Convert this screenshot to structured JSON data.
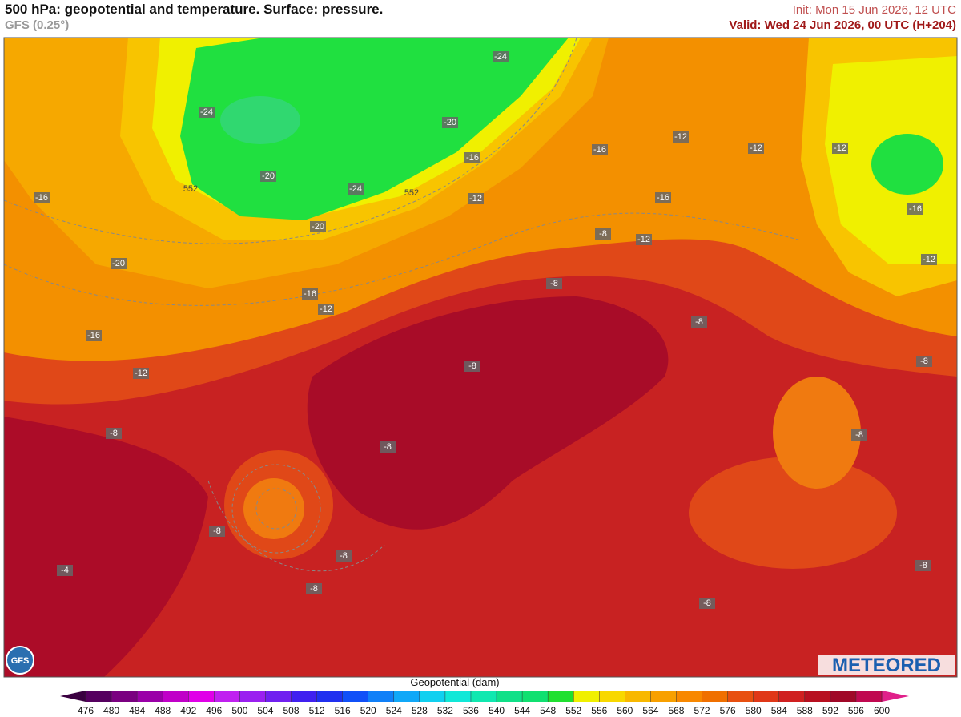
{
  "header": {
    "title": "500 hPa: geopotential and temperature. Surface: pressure.",
    "model": "GFS (0.25°)",
    "init": "Init: Mon 15 Jun 2026, 12 UTC",
    "valid": "Valid: Wed 24 Jun 2026, 00 UTC (H+204)"
  },
  "map": {
    "contour_labels": [
      "-24",
      "-24",
      "-20",
      "-16",
      "-20",
      "-24",
      "552",
      "552",
      "-16",
      "-12",
      "-20",
      "-16",
      "-12",
      "-12",
      "-12",
      "-16",
      "-16",
      "-8",
      "-12",
      "-12",
      "-20",
      "-8",
      "-16",
      "-12",
      "-8",
      "-16",
      "-12",
      "-8",
      "-8",
      "-8",
      "-8",
      "-8",
      "-8",
      "-8",
      "-4",
      "-8",
      "-8",
      "-8"
    ]
  },
  "colorbar": {
    "title": "Geopotential (dam)",
    "ticks": [
      476,
      480,
      484,
      488,
      492,
      496,
      500,
      504,
      508,
      512,
      516,
      520,
      524,
      528,
      532,
      536,
      540,
      544,
      548,
      552,
      556,
      560,
      564,
      568,
      572,
      576,
      580,
      584,
      588,
      592,
      596,
      600
    ],
    "colors": [
      "#55005f",
      "#7a0080",
      "#9a00a8",
      "#c000c8",
      "#e000e8",
      "#c020f0",
      "#9a20f0",
      "#7020f0",
      "#4020f0",
      "#2030f0",
      "#1050f8",
      "#1080f8",
      "#10a8f8",
      "#10d0f0",
      "#10e8d8",
      "#10e8b0",
      "#10e088",
      "#10e070",
      "#20e030",
      "#f0f000",
      "#f8d800",
      "#f8b800",
      "#f8a000",
      "#f88800",
      "#f07000",
      "#e85010",
      "#e03818",
      "#d02020",
      "#b81020",
      "#a00828",
      "#c00850"
    ]
  },
  "logos": {
    "model": "GFS",
    "brand": "METEORED"
  }
}
